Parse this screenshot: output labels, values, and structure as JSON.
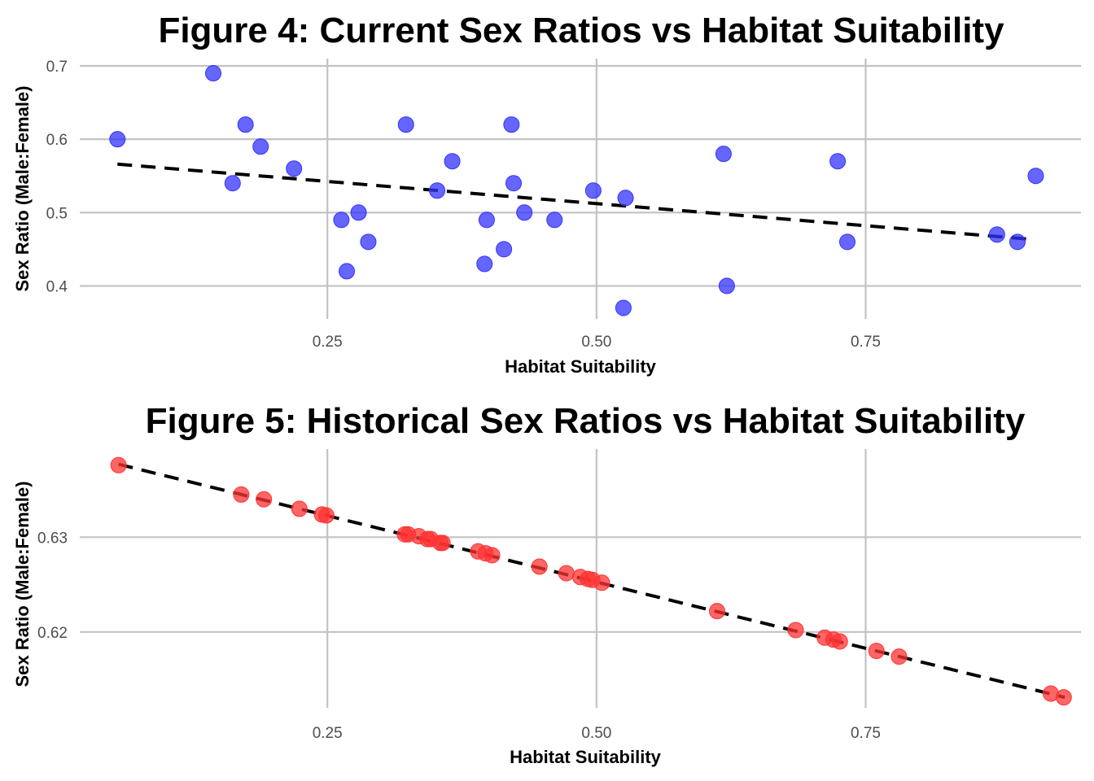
{
  "chart_data": [
    {
      "type": "scatter",
      "title": "Figure 4: Current Sex Ratios vs Habitat Suitability",
      "xlabel": "Habitat Suitability",
      "ylabel": "Sex Ratio (Male:Female)",
      "xlim": [
        0.02,
        0.95
      ],
      "ylim": [
        0.355,
        0.71
      ],
      "x_ticks": [
        0.25,
        0.5,
        0.75
      ],
      "x_tick_labels": [
        "0.25",
        "0.50",
        "0.75"
      ],
      "y_ticks": [
        0.4,
        0.5,
        0.6,
        0.7
      ],
      "y_tick_labels": [
        "0.4",
        "0.5",
        "0.6",
        "0.7"
      ],
      "grid": true,
      "point_color": "#3333ff",
      "trend_color": "#000000",
      "trend": {
        "x": [
          0.055,
          0.9
        ],
        "y": [
          0.566,
          0.464
        ]
      },
      "points": [
        {
          "x": 0.055,
          "y": 0.6
        },
        {
          "x": 0.144,
          "y": 0.69
        },
        {
          "x": 0.162,
          "y": 0.54
        },
        {
          "x": 0.174,
          "y": 0.62
        },
        {
          "x": 0.188,
          "y": 0.59
        },
        {
          "x": 0.219,
          "y": 0.56
        },
        {
          "x": 0.263,
          "y": 0.49
        },
        {
          "x": 0.268,
          "y": 0.42
        },
        {
          "x": 0.279,
          "y": 0.5
        },
        {
          "x": 0.288,
          "y": 0.46
        },
        {
          "x": 0.323,
          "y": 0.62
        },
        {
          "x": 0.352,
          "y": 0.53
        },
        {
          "x": 0.366,
          "y": 0.57
        },
        {
          "x": 0.396,
          "y": 0.43
        },
        {
          "x": 0.398,
          "y": 0.49
        },
        {
          "x": 0.414,
          "y": 0.45
        },
        {
          "x": 0.421,
          "y": 0.62
        },
        {
          "x": 0.423,
          "y": 0.54
        },
        {
          "x": 0.433,
          "y": 0.5
        },
        {
          "x": 0.461,
          "y": 0.49
        },
        {
          "x": 0.497,
          "y": 0.53
        },
        {
          "x": 0.525,
          "y": 0.37
        },
        {
          "x": 0.527,
          "y": 0.52
        },
        {
          "x": 0.618,
          "y": 0.58
        },
        {
          "x": 0.621,
          "y": 0.4
        },
        {
          "x": 0.724,
          "y": 0.57
        },
        {
          "x": 0.733,
          "y": 0.46
        },
        {
          "x": 0.872,
          "y": 0.47
        },
        {
          "x": 0.891,
          "y": 0.46
        },
        {
          "x": 0.908,
          "y": 0.55
        }
      ]
    },
    {
      "type": "scatter",
      "title": "Figure 5: Historical Sex Ratios vs Habitat Suitability",
      "xlabel": "Habitat Suitability",
      "ylabel": "Sex Ratio (Male:Female)",
      "xlim": [
        0.02,
        0.95
      ],
      "ylim": [
        0.612,
        0.6393
      ],
      "x_ticks": [
        0.25,
        0.5,
        0.75
      ],
      "x_tick_labels": [
        "0.25",
        "0.50",
        "0.75"
      ],
      "y_ticks": [
        0.62,
        0.63
      ],
      "y_tick_labels": [
        "0.62",
        "0.63"
      ],
      "grid": true,
      "point_color": "#ff3333",
      "trend_color": "#000000",
      "trend": {
        "x": [
          0.056,
          0.935
        ],
        "y": [
          0.6377,
          0.6131
        ]
      },
      "points": [
        {
          "x": 0.056,
          "y": 0.6376
        },
        {
          "x": 0.17,
          "y": 0.6345
        },
        {
          "x": 0.191,
          "y": 0.634
        },
        {
          "x": 0.224,
          "y": 0.633
        },
        {
          "x": 0.245,
          "y": 0.6324
        },
        {
          "x": 0.249,
          "y": 0.6323
        },
        {
          "x": 0.322,
          "y": 0.6303
        },
        {
          "x": 0.325,
          "y": 0.6303
        },
        {
          "x": 0.335,
          "y": 0.6301
        },
        {
          "x": 0.343,
          "y": 0.6298
        },
        {
          "x": 0.346,
          "y": 0.6298
        },
        {
          "x": 0.355,
          "y": 0.6294
        },
        {
          "x": 0.357,
          "y": 0.6294
        },
        {
          "x": 0.39,
          "y": 0.6285
        },
        {
          "x": 0.397,
          "y": 0.6283
        },
        {
          "x": 0.403,
          "y": 0.6281
        },
        {
          "x": 0.447,
          "y": 0.6269
        },
        {
          "x": 0.472,
          "y": 0.6262
        },
        {
          "x": 0.485,
          "y": 0.6258
        },
        {
          "x": 0.492,
          "y": 0.6256
        },
        {
          "x": 0.496,
          "y": 0.6255
        },
        {
          "x": 0.505,
          "y": 0.6252
        },
        {
          "x": 0.612,
          "y": 0.6222
        },
        {
          "x": 0.685,
          "y": 0.6202
        },
        {
          "x": 0.712,
          "y": 0.6194
        },
        {
          "x": 0.72,
          "y": 0.6192
        },
        {
          "x": 0.726,
          "y": 0.619
        },
        {
          "x": 0.76,
          "y": 0.618
        },
        {
          "x": 0.781,
          "y": 0.6174
        },
        {
          "x": 0.922,
          "y": 0.6135
        },
        {
          "x": 0.934,
          "y": 0.6131
        }
      ]
    }
  ]
}
